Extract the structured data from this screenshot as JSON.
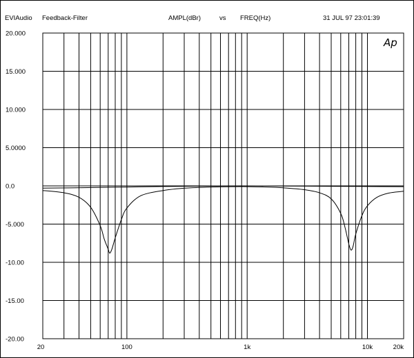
{
  "header": {
    "app": "EVIAudio",
    "title": "Feedback-Filter",
    "y_quantity": "AMPL(dBr)",
    "vs": "vs",
    "x_quantity": "FREQ(Hz)",
    "timestamp": "31 JUL 97 23:01:39"
  },
  "logo_text": "Ap",
  "chart_data": {
    "type": "line",
    "xscale": "log",
    "xlim": [
      20,
      20000
    ],
    "ylim": [
      -20,
      20
    ],
    "y_ticks": [
      {
        "value": 20,
        "label": "20.000"
      },
      {
        "value": 15,
        "label": "15.000"
      },
      {
        "value": 10,
        "label": "10.000"
      },
      {
        "value": 5,
        "label": "5.0000"
      },
      {
        "value": 0,
        "label": "0.0"
      },
      {
        "value": -5,
        "label": "-5.000"
      },
      {
        "value": -10,
        "label": "-10.00"
      },
      {
        "value": -15,
        "label": "-15.00"
      },
      {
        "value": -20,
        "label": "-20.00"
      }
    ],
    "x_tick_labels": [
      {
        "value": 20,
        "label": "20"
      },
      {
        "value": 100,
        "label": "100"
      },
      {
        "value": 1000,
        "label": "1k"
      },
      {
        "value": 10000,
        "label": "10k"
      },
      {
        "value": 20000,
        "label": "20k"
      }
    ],
    "x_gridlines": [
      20,
      30,
      40,
      50,
      60,
      70,
      80,
      90,
      100,
      200,
      300,
      400,
      500,
      600,
      700,
      800,
      900,
      1000,
      2000,
      3000,
      4000,
      5000,
      6000,
      7000,
      8000,
      9000,
      10000,
      20000
    ],
    "grid": true,
    "series": [
      {
        "x": [
          20,
          30,
          40,
          50,
          60,
          65,
          70,
          72,
          75,
          80,
          90,
          100,
          130,
          200,
          300,
          500,
          800,
          1000,
          1500,
          2000,
          3000,
          4000,
          5000,
          6000,
          6500,
          7000,
          7300,
          7600,
          8000,
          9000,
          10000,
          12000,
          15000,
          20000
        ],
        "y": [
          -0.6,
          -0.9,
          -1.5,
          -2.8,
          -5.2,
          -7.0,
          -8.3,
          -8.8,
          -8.3,
          -6.8,
          -4.4,
          -2.9,
          -1.3,
          -0.6,
          -0.3,
          -0.15,
          -0.1,
          -0.1,
          -0.15,
          -0.25,
          -0.5,
          -0.9,
          -1.7,
          -3.6,
          -5.4,
          -7.6,
          -8.4,
          -7.9,
          -6.3,
          -3.9,
          -2.6,
          -1.5,
          -0.95,
          -0.7
        ]
      },
      {
        "x": [
          20,
          50,
          100,
          200,
          500,
          1000,
          2000,
          5000,
          10000,
          20000
        ],
        "y": [
          -0.3,
          -0.22,
          -0.15,
          -0.08,
          -0.02,
          0.0,
          -0.02,
          -0.05,
          -0.08,
          -0.1
        ]
      }
    ]
  }
}
